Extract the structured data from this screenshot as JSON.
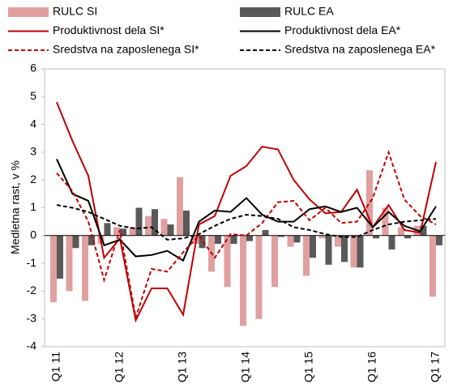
{
  "chart_data": {
    "type": "bar-line",
    "y_label": "Medletna rast, v %",
    "categories": [
      "Q1 11",
      null,
      null,
      null,
      "Q1 12",
      null,
      null,
      null,
      "Q1 13",
      null,
      null,
      null,
      "Q1 14",
      null,
      null,
      null,
      "Q1 15",
      null,
      null,
      null,
      "Q1 16",
      null,
      null,
      null,
      "Q1 17"
    ],
    "ylim": [
      -4,
      6
    ],
    "yticks": [
      -4,
      -3,
      -2,
      -1,
      0,
      1,
      2,
      3,
      4,
      5,
      6
    ],
    "series": [
      {
        "name": "RULC SI",
        "kind": "bar",
        "color": "#e0a0a0",
        "values": [
          -2.4,
          -2.0,
          -2.35,
          -0.3,
          0.3,
          0.3,
          0.7,
          0.6,
          2.1,
          -0.3,
          -1.3,
          -1.85,
          -3.25,
          -3.0,
          -1.85,
          -0.4,
          -1.45,
          -0.1,
          -0.4,
          -1.15,
          2.35,
          1.0,
          0.3,
          0.35,
          -2.2
        ]
      },
      {
        "name": "RULC EA",
        "kind": "bar",
        "color": "#595959",
        "values": [
          -1.55,
          -0.45,
          -0.35,
          0.45,
          0.25,
          1.0,
          0.95,
          0.4,
          0.9,
          -0.45,
          -0.3,
          -0.3,
          -0.2,
          0.2,
          -0.05,
          -0.25,
          -0.8,
          -1.05,
          -0.95,
          -1.15,
          -0.1,
          -0.5,
          -0.1,
          0.35,
          -0.35
        ]
      },
      {
        "name": "Produktivnost dela SI*",
        "kind": "line",
        "dashed": false,
        "color": "#c00000",
        "values": [
          4.8,
          3.4,
          2.15,
          -0.8,
          -0.1,
          -3.05,
          -1.9,
          -1.9,
          -2.85,
          0.4,
          0.7,
          2.15,
          2.5,
          3.2,
          3.1,
          2.0,
          1.3,
          0.8,
          0.85,
          1.65,
          0.3,
          1.1,
          0.2,
          0.1,
          2.65
        ]
      },
      {
        "name": "Produktivnost dela EA*",
        "kind": "line",
        "dashed": false,
        "color": "#000000",
        "values": [
          2.75,
          1.5,
          1.25,
          -0.35,
          -0.15,
          -0.75,
          -0.7,
          -0.55,
          -0.9,
          0.5,
          0.9,
          0.85,
          1.35,
          0.75,
          0.5,
          0.5,
          0.95,
          1.05,
          0.85,
          1.0,
          0.3,
          0.85,
          0.35,
          0.15,
          1.05
        ]
      },
      {
        "name": "Sredstva na zaposlenega SI*",
        "kind": "line",
        "dashed": true,
        "color": "#c00000",
        "values": [
          2.25,
          1.6,
          0.5,
          -1.6,
          0.2,
          -2.95,
          -1.2,
          -1.3,
          -0.6,
          0.0,
          -0.8,
          0.05,
          0.0,
          0.45,
          1.2,
          1.25,
          0.55,
          1.0,
          0.45,
          0.5,
          1.35,
          3.0,
          1.3,
          0.7,
          0.4
        ]
      },
      {
        "name": "Sredstva na zaposlenega EA*",
        "kind": "line",
        "dashed": true,
        "color": "#000000",
        "values": [
          1.1,
          1.0,
          0.85,
          0.6,
          0.35,
          0.25,
          0.3,
          -0.15,
          -0.1,
          0.05,
          0.35,
          0.6,
          0.75,
          0.7,
          0.6,
          0.3,
          0.2,
          0.05,
          -0.05,
          -0.05,
          0.2,
          0.4,
          0.5,
          0.55,
          0.6
        ]
      }
    ]
  }
}
